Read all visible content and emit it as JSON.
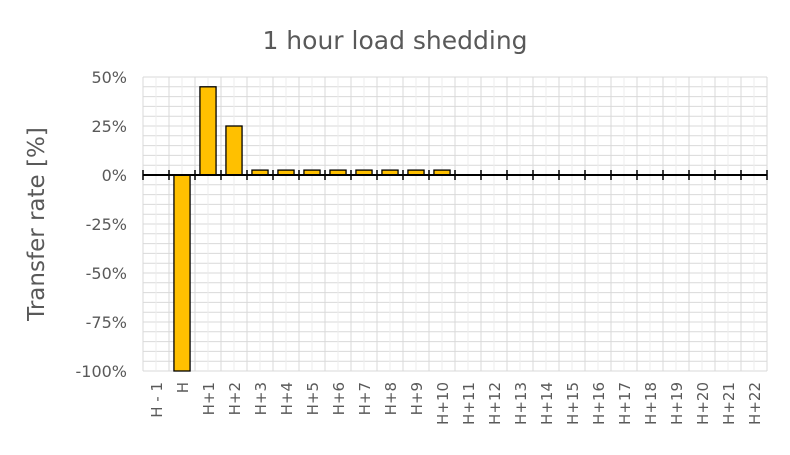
{
  "chart_data": {
    "type": "bar",
    "title": "1 hour load shedding",
    "xlabel": "",
    "ylabel": "Transfer rate [%]",
    "ylim": [
      -100,
      50
    ],
    "y_tick_values": [
      -100,
      -75,
      -50,
      -25,
      0,
      25,
      50
    ],
    "y_tick_labels": [
      "-100%",
      "-75%",
      "-50%",
      "-25%",
      "0%",
      "25%",
      "50%"
    ],
    "grid": true,
    "legend": "none",
    "categories": [
      "H - 1",
      "H",
      "H+1",
      "H+2",
      "H+3",
      "H+4",
      "H+5",
      "H+6",
      "H+7",
      "H+8",
      "H+9",
      "H+10",
      "H+11",
      "H+12",
      "H+13",
      "H+14",
      "H+15",
      "H+16",
      "H+17",
      "H+18",
      "H+19",
      "H+20",
      "H+21",
      "H+22"
    ],
    "values": [
      0,
      -100,
      45,
      25,
      2.5,
      2.5,
      2.5,
      2.5,
      2.5,
      2.5,
      2.5,
      2.5,
      0,
      0,
      0,
      0,
      0,
      0,
      0,
      0,
      0,
      0,
      0,
      0
    ],
    "colors": {
      "bar_fill": "#FFC000",
      "bar_stroke": "#000000",
      "grid": "#D9D9D9",
      "text": "#595959"
    }
  }
}
